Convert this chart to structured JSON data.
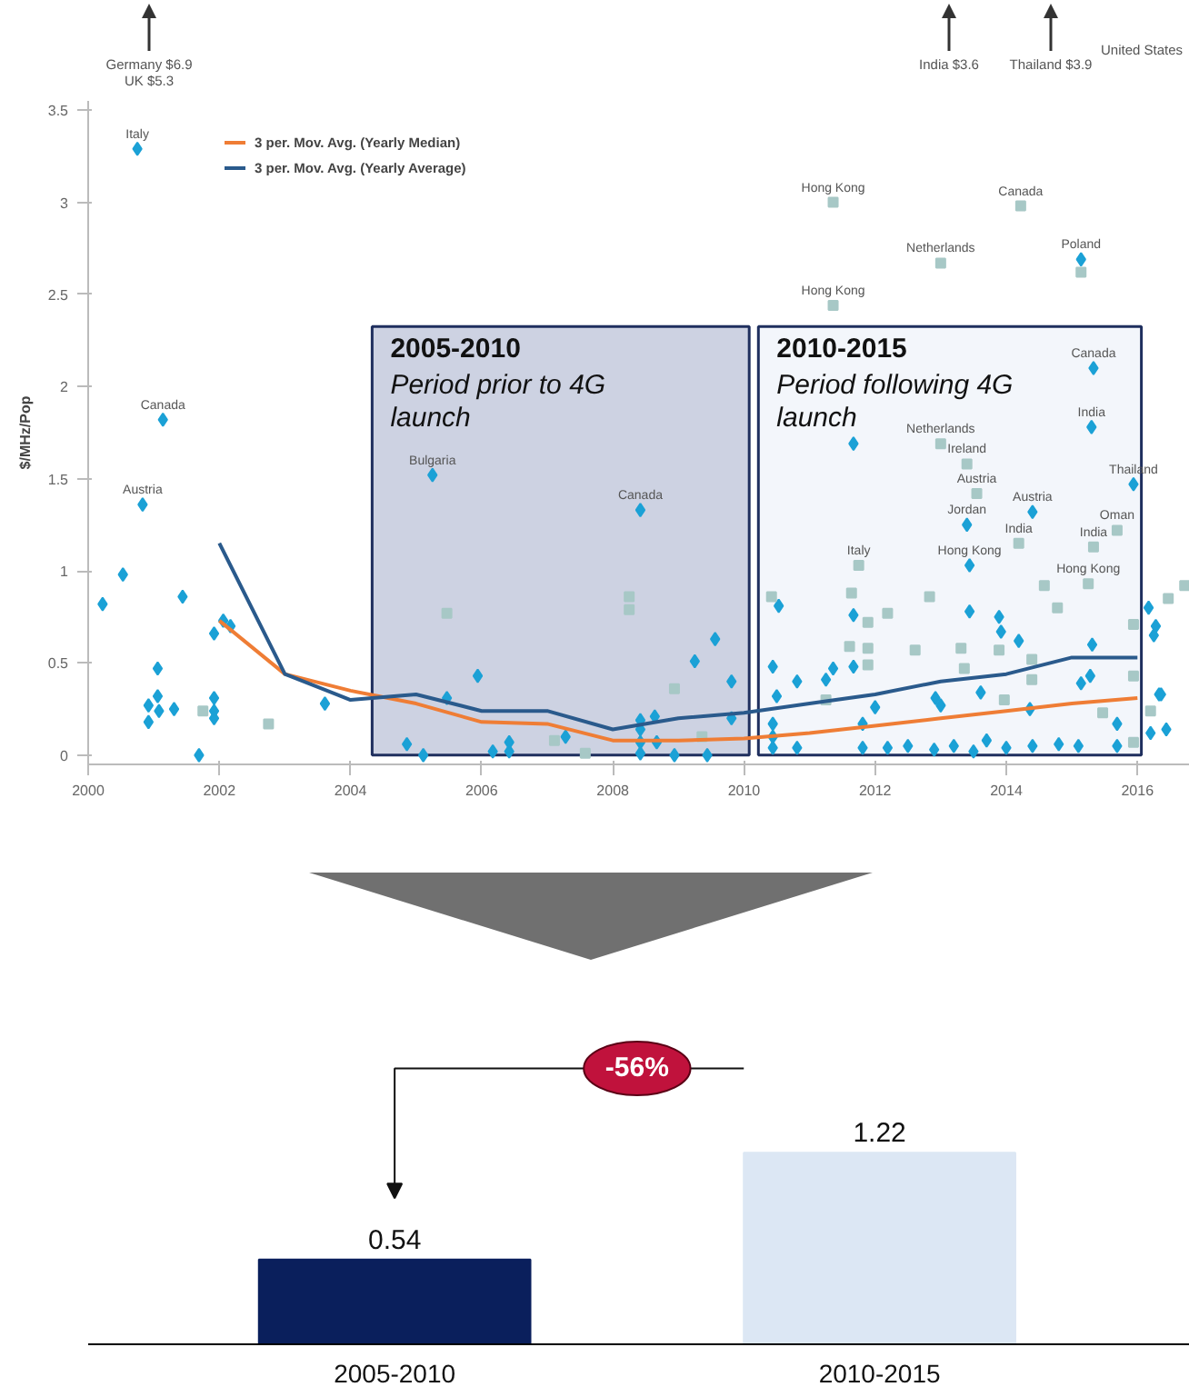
{
  "chart_data": [
    {
      "type": "scatter",
      "ylabel": "$/MHz/Pop",
      "xlim": [
        2000,
        2016.8
      ],
      "ylim": [
        -0.05,
        3.55
      ],
      "xticks": [
        2000,
        2002,
        2004,
        2006,
        2008,
        2010,
        2012,
        2014,
        2016
      ],
      "yticks": [
        0,
        0.5,
        1,
        1.5,
        2,
        2.5,
        3,
        3.5
      ],
      "grid": false,
      "legend": "top left",
      "series": [
        {
          "type": "scatter",
          "marker": "diamond",
          "color": "#1ba1d6",
          "x": [
            2000.22,
            2000.53,
            2000.75,
            2000.83,
            2001.14,
            2001.44,
            2001.06,
            2000.92,
            2001.06,
            2001.08,
            2001.31,
            2000.92,
            2001.69,
            2001.92,
            2001.92,
            2001.92,
            2001.92,
            2002.06,
            2002.17,
            2003.61,
            2004.86,
            2005.11,
            2005.25,
            2005.47,
            2005.94,
            2006.17,
            2006.42,
            2006.42,
            2007.28,
            2008.42,
            2008.42,
            2008.42,
            2008.42,
            2008.42,
            2008.64,
            2008.67,
            2008.94,
            2009.25,
            2009.56,
            2009.81,
            2009.81,
            2009.44,
            2010.53,
            2010.44,
            2010.5,
            2010.44,
            2010.44,
            2010.44,
            2010.81,
            2010.81,
            2011.25,
            2011.36,
            2011.67,
            2011.67,
            2011.67,
            2011.81,
            2011.81,
            2012.0,
            2012.19,
            2012.5,
            2012.92,
            2012.9,
            2013.0,
            2013.2,
            2013.44,
            2013.44,
            2013.5,
            2013.61,
            2013.7,
            2013.89,
            2013.92,
            2014.4,
            2013.4,
            2014.0,
            2014.19,
            2014.36,
            2014.4,
            2014.8,
            2015.14,
            2015.33,
            2015.3,
            2015.31,
            2015.14,
            2015.28,
            2015.1,
            2015.69,
            2015.69,
            2015.94,
            2016.17,
            2016.28,
            2016.25,
            2016.33,
            2016.36,
            2016.44,
            2016.2
          ],
          "values": [
            0.82,
            0.98,
            3.29,
            1.36,
            1.82,
            0.86,
            0.47,
            0.27,
            0.32,
            0.24,
            0.25,
            0.18,
            0,
            0.66,
            0.31,
            0.24,
            0.2,
            0.73,
            0.7,
            0.28,
            0.06,
            0,
            1.52,
            0.31,
            0.43,
            0.02,
            0.07,
            0.02,
            0.1,
            1.33,
            0.19,
            0.14,
            0.07,
            0.01,
            0.21,
            0.07,
            0,
            0.51,
            0.63,
            0.4,
            0.2,
            0,
            0.81,
            0.48,
            0.32,
            0.17,
            0.1,
            0.04,
            0.4,
            0.04,
            0.41,
            0.47,
            1.69,
            0.76,
            0.48,
            0.17,
            0.04,
            0.26,
            0.04,
            0.05,
            0.31,
            0.03,
            0.27,
            0.05,
            1.03,
            0.78,
            0.02,
            0.34,
            0.08,
            0.75,
            0.67,
            1.32,
            1.25,
            0.04,
            0.62,
            0.25,
            0.05,
            0.06,
            2.69,
            2.1,
            1.78,
            0.6,
            0.39,
            0.43,
            0.05,
            0.17,
            0.05,
            1.47,
            0.8,
            0.7,
            0.65,
            0.33,
            0.33,
            0.14,
            0.12
          ]
        },
        {
          "type": "scatter",
          "marker": "square",
          "color": "#a7c8c6",
          "x": [
            2001.75,
            2002.75,
            2005.47,
            2007.11,
            2007.58,
            2008.25,
            2008.25,
            2008.94,
            2009.36,
            2010.42,
            2011.25,
            2011.36,
            2011.36,
            2011.64,
            2011.61,
            2011.75,
            2011.89,
            2011.89,
            2011.89,
            2012.19,
            2012.61,
            2012.83,
            2013.0,
            2013.0,
            2013.4,
            2013.31,
            2013.36,
            2013.89,
            2013.55,
            2013.97,
            2014.19,
            2014.22,
            2014.39,
            2014.39,
            2014.58,
            2015.25,
            2014.78,
            2015.14,
            2015.33,
            2015.47,
            2015.69,
            2015.94,
            2015.94,
            2015.94,
            2016.47,
            2016.72,
            2016.2
          ],
          "values": [
            0.24,
            0.17,
            0.77,
            0.08,
            0.01,
            0.86,
            0.79,
            0.36,
            0.1,
            0.86,
            0.3,
            3.0,
            2.44,
            0.88,
            0.59,
            1.03,
            0.72,
            0.58,
            0.49,
            0.77,
            0.57,
            0.86,
            2.67,
            1.69,
            1.58,
            0.58,
            0.47,
            0.57,
            1.42,
            0.3,
            1.15,
            2.98,
            0.52,
            0.41,
            0.92,
            0.93,
            0.8,
            2.62,
            1.13,
            0.23,
            1.22,
            0.71,
            0.43,
            0.07,
            0.85,
            0.92,
            0.24
          ]
        },
        {
          "type": "line",
          "name": "3 per. Mov. Avg. (Yearly Median)",
          "color": "#ef7d35",
          "x": [
            2002,
            2003,
            2004,
            2005,
            2006,
            2007,
            2008,
            2009,
            2010,
            2011,
            2012,
            2013,
            2014,
            2015,
            2016
          ],
          "values": [
            0.73,
            0.44,
            0.35,
            0.28,
            0.18,
            0.17,
            0.08,
            0.08,
            0.09,
            0.12,
            0.16,
            0.2,
            0.24,
            0.28,
            0.31
          ]
        },
        {
          "type": "line",
          "name": "3 per. Mov. Avg. (Yearly Average)",
          "color": "#2a5a8c",
          "x": [
            2002,
            2003,
            2004,
            2005,
            2006,
            2007,
            2008,
            2009,
            2010,
            2011,
            2012,
            2013,
            2014,
            2015,
            2016
          ],
          "values": [
            1.15,
            0.44,
            0.3,
            0.33,
            0.24,
            0.24,
            0.14,
            0.2,
            0.23,
            0.28,
            0.33,
            0.4,
            0.44,
            0.53,
            0.53
          ]
        }
      ],
      "bands": [
        {
          "axis": "x",
          "from": 2004.33,
          "to": 2010.08,
          "label": "2005-2010\nPeriod prior to 4G launch",
          "color": "#cdd2e2"
        },
        {
          "axis": "x",
          "from": 2010.22,
          "to": 2016.06,
          "label": "2010-2015\nPeriod following 4G launch",
          "color": "#f3f6fb"
        }
      ],
      "annotations": [
        "Germany $6.9\nUK $5.3",
        "India $3.6",
        "Thailand $3.9",
        "United States",
        {
          "text": "Italy",
          "x": 2000.75,
          "y": 3.29
        },
        {
          "text": "Canada",
          "x": 2001.14,
          "y": 1.82
        },
        {
          "text": "Austria",
          "x": 2000.83,
          "y": 1.36
        },
        {
          "text": "Bulgaria",
          "x": 2005.25,
          "y": 1.52
        },
        {
          "text": "Canada",
          "x": 2008.42,
          "y": 1.33
        },
        {
          "text": "Hong Kong",
          "x": 2011.36,
          "y": 3.0
        },
        {
          "text": "Canada",
          "x": 2014.22,
          "y": 2.98
        },
        {
          "text": "Netherlands",
          "x": 2013.0,
          "y": 2.67
        },
        {
          "text": "Poland",
          "x": 2015.14,
          "y": 2.69
        },
        {
          "text": "Hong Kong",
          "x": 2011.36,
          "y": 2.44
        },
        {
          "text": "Canada",
          "x": 2015.33,
          "y": 2.1
        },
        {
          "text": "Netherlands",
          "x": 2013.0,
          "y": 1.69
        },
        {
          "text": "India",
          "x": 2015.3,
          "y": 1.78
        },
        {
          "text": "Ireland",
          "x": 2013.4,
          "y": 1.58
        },
        {
          "text": "Austria",
          "x": 2013.55,
          "y": 1.42
        },
        {
          "text": "Austria",
          "x": 2014.4,
          "y": 1.32
        },
        {
          "text": "Jordan",
          "x": 2013.4,
          "y": 1.25
        },
        {
          "text": "India",
          "x": 2014.19,
          "y": 1.15
        },
        {
          "text": "Thailand",
          "x": 2015.94,
          "y": 1.47
        },
        {
          "text": "Oman",
          "x": 2015.69,
          "y": 1.22
        },
        {
          "text": "India",
          "x": 2015.33,
          "y": 1.13
        },
        {
          "text": "Italy",
          "x": 2011.75,
          "y": 1.03
        },
        {
          "text": "Hong Kong",
          "x": 2013.44,
          "y": 1.03
        },
        {
          "text": "Hong Kong",
          "x": 2015.25,
          "y": 0.93
        }
      ]
    },
    {
      "type": "bar",
      "categories": [
        "2005-2010",
        "2010-2015"
      ],
      "values": [
        0.54,
        1.22
      ],
      "colors": [
        "#0a1f5c",
        "#dce7f4"
      ],
      "data_labels": true,
      "annotations": [
        "-56%"
      ]
    }
  ]
}
